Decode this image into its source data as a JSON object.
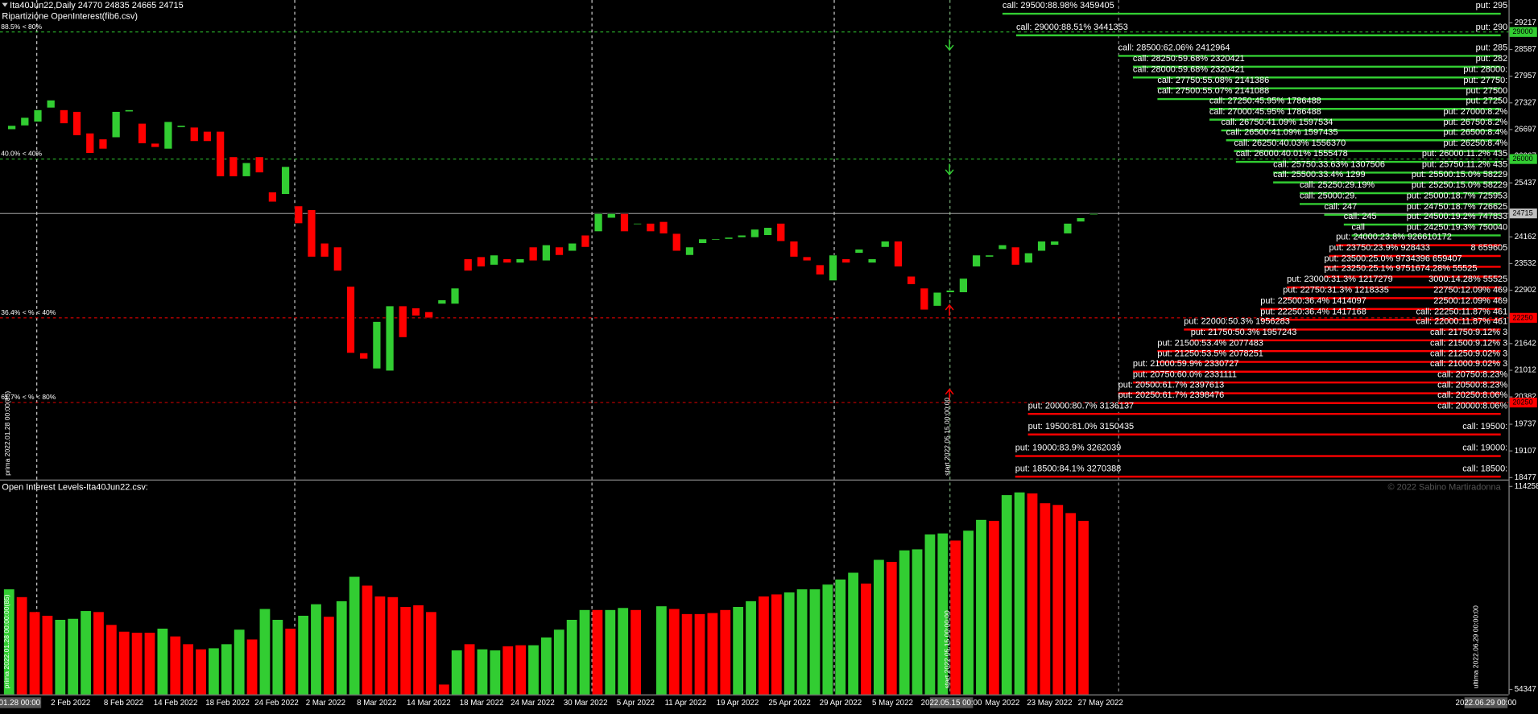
{
  "chart_data": [
    {
      "type": "candlestick",
      "title": "Ita40Jun22,Daily  24770 24835 24665 24715",
      "subtitle": "Ripartizione OpenInterest(fib6.csv)",
      "up_color": "#32cd32",
      "down_color": "#ff0000",
      "open": [
        26700,
        26790,
        26880,
        27210,
        27160,
        27120,
        26610,
        26470,
        26510,
        27120,
        26840,
        26370,
        26240,
        26750,
        26750,
        26650,
        26650,
        26050,
        25590,
        26050,
        25220,
        25170,
        24890,
        24800,
        24010,
        23920,
        22990,
        21420,
        21050,
        21000,
        22530,
        22480,
        22390,
        22580,
        22580,
        23640,
        23690,
        23500,
        23640,
        23550,
        23920,
        23600,
        23920,
        23830,
        24200,
        24290,
        24610,
        24710,
        24480,
        24480,
        24520,
        24240,
        23730,
        24010,
        24110,
        24110,
        24150,
        24150,
        24200,
        24480,
        24060,
        23690,
        23500,
        23130,
        23640,
        23780,
        23550,
        23920,
        24060,
        23230,
        22950,
        22530,
        22850,
        22850,
        23460,
        23690,
        23870,
        23920,
        23550,
        23830,
        23970,
        24240,
        24520,
        24710
      ],
      "close": [
        26790,
        26980,
        27160,
        27390,
        26840,
        26560,
        26140,
        26240,
        27120,
        27160,
        26370,
        26280,
        26880,
        26790,
        26420,
        26420,
        25590,
        25590,
        25910,
        25680,
        24990,
        25820,
        24480,
        23690,
        23690,
        23360,
        21420,
        21280,
        22160,
        22530,
        21790,
        22300,
        22250,
        22670,
        22950,
        23360,
        23460,
        23730,
        23550,
        23640,
        23600,
        23970,
        23730,
        24010,
        23920,
        24710,
        24710,
        24290,
        24480,
        24290,
        24240,
        23830,
        23920,
        24110,
        24110,
        24150,
        24200,
        24340,
        24380,
        24060,
        23690,
        23600,
        23270,
        23730,
        23550,
        23870,
        23640,
        24060,
        23460,
        23040,
        22440,
        22850,
        22900,
        23180,
        23730,
        23730,
        23970,
        23500,
        23780,
        24060,
        24060,
        24480,
        24610,
        24710
      ],
      "ylim": [
        18430,
        29756
      ],
      "yticks": [
        29217,
        28587,
        27957,
        27327,
        26697,
        26067,
        25437,
        24162,
        23532,
        22902,
        21642,
        21012,
        20382,
        19737,
        19107,
        18477
      ],
      "marked_levels": [
        {
          "value": 29000,
          "color": "#32cd32",
          "label": "88.5% < 80%"
        },
        {
          "value": 26000,
          "color": "#32cd32",
          "label": "40.0% < 40%"
        },
        {
          "value": 24715,
          "color": "#c0c0c0"
        },
        {
          "value": 22250,
          "color": "#ff0000",
          "label": "36.4% < % < 40%"
        },
        {
          "value": 20250,
          "color": "#ff0000",
          "label": "61.7% < % < 80%"
        }
      ],
      "levels": [
        {
          "label": "call: 29500:88.98% 3459405",
          "side": "put: 295",
          "color": "#32cd32"
        },
        {
          "label": "call: 29000:88.51% 3441353",
          "side": "put: 290",
          "color": "#32cd32"
        },
        {
          "label": "call: 28500:62.06% 2412964",
          "side": "put: 285",
          "color": "#32cd32"
        },
        {
          "label": "call: 28250:59.68% 2320421",
          "side": "put: 282",
          "color": "#32cd32"
        },
        {
          "label": "call: 28000:59.68% 2320421",
          "side": "put: 28000:",
          "color": "#32cd32"
        },
        {
          "label": "call: 27750:55.08% 2141386",
          "side": "put: 27750:",
          "color": "#32cd32"
        },
        {
          "label": "call: 27500:55.07% 2141088",
          "side": "put: 27500",
          "color": "#32cd32"
        },
        {
          "label": "call: 27250:45.95% 1786488",
          "side": "put: 27250",
          "color": "#32cd32"
        },
        {
          "label": "call: 27000:45.95% 1786488",
          "side": "put: 27000:8.2%",
          "color": "#32cd32"
        },
        {
          "label": "call: 26750:41.09% 1597534",
          "side": "put: 26750:8.2%",
          "color": "#32cd32"
        },
        {
          "label": "call: 26500:41.09% 1597435",
          "side": "put: 26500:8.4%",
          "color": "#32cd32"
        },
        {
          "label": "call: 26250:40.03% 1556370",
          "side": "put: 26250:8.4%",
          "color": "#32cd32"
        },
        {
          "label": "call: 26000:40.01% 1555478",
          "side": "put: 26000:11.2% 435",
          "color": "#32cd32"
        },
        {
          "label": "call: 25750:33.63% 1307506",
          "side": "put: 25750:11.2% 435",
          "color": "#32cd32"
        },
        {
          "label": "call: 25500:33.4% 1299",
          "side": "put: 25500:15.0% 58229",
          "color": "#32cd32"
        },
        {
          "label": "call: 25250:29.19%",
          "side": "put: 25250:15.0% 58229",
          "color": "#32cd32"
        },
        {
          "label": "call: 25000:29.",
          "side": "put: 25000:18.7% 725953",
          "color": "#32cd32"
        },
        {
          "label": "call: 247",
          "side": "put: 24750:18.7% 726625",
          "color": "#32cd32"
        },
        {
          "label": "call: 245",
          "side": "put: 24500:19.2% 747833",
          "color": "#32cd32"
        },
        {
          "label": "call",
          "side": "put: 24250:19.3% 750040",
          "color": "#32cd32"
        },
        {
          "label": "put: 24000:23.8% 926610172",
          "side": "",
          "color": "#ff0000"
        },
        {
          "label": "put: 23750:23.9% 928433",
          "side": "8 659605",
          "color": "#ff0000"
        },
        {
          "label": "put: 23500:25.0% 9734396 659407",
          "side": "",
          "color": "#ff0000"
        },
        {
          "label": "put: 23250:25.1% 9751674.28% 55525",
          "side": "",
          "color": "#ff0000"
        },
        {
          "label": "put: 23000:31.3% 1217279",
          "side": "3000:14.28% 55525",
          "color": "#ff0000"
        },
        {
          "label": "put: 22750:31.3% 1218335",
          "side": "22750:12.09% 469",
          "color": "#ff0000"
        },
        {
          "label": "put: 22500:36.4% 1414097",
          "side": "22500:12.09% 469",
          "color": "#ff0000"
        },
        {
          "label": "put: 22250:36.4% 1417168",
          "side": "call: 22250:11.87% 461",
          "color": "#ff0000"
        },
        {
          "label": "put: 22000:50.3% 1956283",
          "side": "call: 22000:11.87% 461",
          "color": "#ff0000"
        },
        {
          "label": "put: 21750:50.3% 1957243",
          "side": "call: 21750:9.12% 3",
          "color": "#ff0000"
        },
        {
          "label": "put: 21500:53.4% 2077483",
          "side": "call: 21500:9.12% 3",
          "color": "#ff0000"
        },
        {
          "label": "put: 21250:53.5% 2078251",
          "side": "call: 21250:9.02% 3",
          "color": "#ff0000"
        },
        {
          "label": "put: 21000:59.9% 2330727",
          "side": "call: 21000:9.02% 3",
          "color": "#ff0000"
        },
        {
          "label": "put: 20750:60.0% 2331111",
          "side": "call: 20750:8.23%",
          "color": "#ff0000"
        },
        {
          "label": "put: 20500:61.7% 2397613",
          "side": "call: 20500:8.23%",
          "color": "#ff0000"
        },
        {
          "label": "put: 20250:61.7% 2398476",
          "side": "call: 20250:8.06%",
          "color": "#ff0000"
        },
        {
          "label": "put: 20000:80.7% 3136137",
          "side": "call: 20000:8.06%",
          "color": "#ff0000"
        },
        {
          "label": "put: 19500:81.0% 3150435",
          "side": "call: 19500:",
          "color": "#ff0000"
        },
        {
          "label": "put: 19000:83.9% 3262039",
          "side": "call: 19000:",
          "color": "#ff0000"
        },
        {
          "label": "put: 18500:84.1% 3270388",
          "side": "call: 18500:",
          "color": "#ff0000"
        }
      ],
      "vertical_labels": [
        "prima 2022.01.28 00:00(85)",
        "start 2022.05.15 00:00:00"
      ]
    },
    {
      "type": "bar",
      "title": "Open Interest Levels-Ita40Jun22.csv:",
      "annotation": "© 2022 Sabino Martiradonna",
      "values": [
        83900,
        81600,
        77200,
        76100,
        74900,
        75200,
        77500,
        77200,
        73400,
        71400,
        71100,
        71100,
        72300,
        70000,
        67700,
        66200,
        66500,
        67700,
        72000,
        69100,
        78100,
        74900,
        72300,
        76100,
        79500,
        75800,
        80400,
        87600,
        85000,
        81800,
        81600,
        78700,
        79200,
        77200,
        55800,
        65900,
        67700,
        66200,
        65900,
        67100,
        67400,
        67400,
        69700,
        72000,
        74900,
        77800,
        77800,
        77800,
        78400,
        77800,
        null,
        78900,
        78100,
        76600,
        76600,
        76900,
        77800,
        78700,
        80400,
        81800,
        82400,
        83000,
        83900,
        83900,
        85300,
        86800,
        88800,
        85600,
        92600,
        92000,
        95400,
        95700,
        100100,
        100400,
        98300,
        101200,
        104400,
        104100,
        111700,
        112500,
        112200,
        109300,
        108800,
        106400,
        104100
      ],
      "colors": [
        "#32cd32",
        "#ff0000",
        "#ff0000",
        "#ff0000",
        "#32cd32",
        "#32cd32",
        "#32cd32",
        "#ff0000",
        "#ff0000",
        "#ff0000",
        "#ff0000",
        "#ff0000",
        "#32cd32",
        "#ff0000",
        "#ff0000",
        "#ff0000",
        "#32cd32",
        "#32cd32",
        "#32cd32",
        "#ff0000",
        "#32cd32",
        "#32cd32",
        "#ff0000",
        "#32cd32",
        "#32cd32",
        "#ff0000",
        "#32cd32",
        "#32cd32",
        "#ff0000",
        "#ff0000",
        "#ff0000",
        "#ff0000",
        "#ff0000",
        "#ff0000",
        "#ff0000",
        "#32cd32",
        "#ff0000",
        "#32cd32",
        "#32cd32",
        "#ff0000",
        "#ff0000",
        "#32cd32",
        "#32cd32",
        "#32cd32",
        "#32cd32",
        "#32cd32",
        "#ff0000",
        "#32cd32",
        "#32cd32",
        "#ff0000",
        "#000000",
        "#32cd32",
        "#ff0000",
        "#ff0000",
        "#ff0000",
        "#ff0000",
        "#ff0000",
        "#32cd32",
        "#32cd32",
        "#ff0000",
        "#ff0000",
        "#32cd32",
        "#32cd32",
        "#32cd32",
        "#32cd32",
        "#32cd32",
        "#32cd32",
        "#ff0000",
        "#32cd32",
        "#ff0000",
        "#32cd32",
        "#32cd32",
        "#32cd32",
        "#32cd32",
        "#ff0000",
        "#32cd32",
        "#32cd32",
        "#ff0000",
        "#32cd32",
        "#32cd32",
        "#ff0000",
        "#ff0000",
        "#ff0000",
        "#ff0000",
        "#ff0000"
      ],
      "ylim": [
        52900,
        115700
      ],
      "yticks": [
        114258,
        54347
      ],
      "x_labels": [
        "01.28 00:00",
        "2 Feb 2022",
        "8 Feb 2022",
        "14 Feb 2022",
        "18 Feb 2022",
        "24 Feb 2022",
        "2 Mar 2022",
        "8 Mar 2022",
        "14 Mar 2022",
        "18 Mar 2022",
        "24 Mar 2022",
        "30 Mar 2022",
        "5 Apr 2022",
        "11 Apr 2022",
        "19 Apr 2022",
        "25 Apr 2022",
        "29 Apr 2022",
        "5 May 2022",
        "2022.05.15 00:00",
        "May 2022",
        "23 May 2022",
        "27 May 2022",
        "2022.06.29 00:00"
      ],
      "vertical_labels": [
        "prima 2022.01.28 00:00:00(85)",
        "start 2022.05.15 00:00:00",
        "ultima 2022.06.29 00:00:00"
      ]
    }
  ]
}
